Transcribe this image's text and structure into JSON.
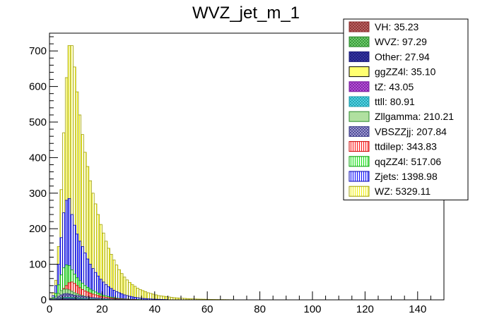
{
  "chart_data": {
    "type": "bar",
    "title": "WVZ_jet_m_1",
    "xlabel": "",
    "ylabel": "",
    "xlim": [
      0,
      150
    ],
    "ylim": [
      0,
      750
    ],
    "bin_width": 1,
    "x_ticks": [
      0,
      20,
      40,
      60,
      80,
      100,
      120,
      140
    ],
    "y_ticks": [
      0,
      100,
      200,
      300,
      400,
      500,
      600,
      700
    ],
    "stacked": false,
    "legend_position": "top-right",
    "legend": [
      {
        "label": "VH: 35.23",
        "fill": "#c07070",
        "hatch": "cross",
        "edge": "#8a2a2a"
      },
      {
        "label": "WVZ: 97.29",
        "fill": "#7ddc7d",
        "hatch": "cross",
        "edge": "#2e8b2e"
      },
      {
        "label": "Other: 27.94",
        "fill": "#3a3aa8",
        "hatch": "cross",
        "edge": "#1a1a7a"
      },
      {
        "label": "ggZZ4l: 35.10",
        "fill": "#ffff70",
        "hatch": "none",
        "edge": "#000000"
      },
      {
        "label": "tZ: 43.05",
        "fill": "#c060e0",
        "hatch": "cross",
        "edge": "#7a1aa0"
      },
      {
        "label": "ttll: 80.91",
        "fill": "#60e0f0",
        "hatch": "cross",
        "edge": "#1a9aaa"
      },
      {
        "label": "Zllgamma: 210.21",
        "fill": "#b0e0a0",
        "hatch": "none",
        "edge": "#2e8b2e"
      },
      {
        "label": "VBSZZjj: 207.84",
        "fill": "#b8b0e0",
        "hatch": "cross",
        "edge": "#3a3a8a"
      },
      {
        "label": "ttdilep: 343.83",
        "fill": "#ff2020",
        "hatch": "vertical",
        "edge": "#cc0000"
      },
      {
        "label": "qqZZ4l: 517.06",
        "fill": "#20e020",
        "hatch": "vertical",
        "edge": "#00a000"
      },
      {
        "label": "Zjets: 1398.98",
        "fill": "#1a1aff",
        "hatch": "vertical",
        "edge": "#0000b0"
      },
      {
        "label": "WZ: 5329.11",
        "fill": "#f0f020",
        "hatch": "vertical",
        "edge": "#a0a000"
      }
    ],
    "series": [
      {
        "name": "WZ: 5329.11",
        "x_start": 0,
        "values": [
          5,
          20,
          55,
          150,
          310,
          470,
          625,
          715,
          715,
          655,
          585,
          520,
          465,
          415,
          375,
          335,
          300,
          270,
          240,
          212,
          188,
          165,
          145,
          128,
          112,
          98,
          85,
          74,
          64,
          56,
          49,
          43,
          38,
          33,
          29,
          26,
          23,
          20,
          18,
          16,
          14,
          12,
          11,
          10,
          9,
          8,
          7,
          6,
          5.5,
          5,
          4.5,
          4,
          3.5,
          3,
          2.8,
          2.5,
          2.2,
          2,
          1.8,
          1.6,
          1.4,
          1.2,
          1.1,
          1,
          0.9,
          0.8,
          0.7,
          0.6,
          0.5,
          0.5
        ]
      },
      {
        "name": "Zjets: 1398.98",
        "x_start": 0,
        "values": [
          3,
          12,
          40,
          100,
          175,
          245,
          280,
          285,
          240,
          210,
          185,
          165,
          150,
          132,
          115,
          100,
          88,
          77,
          67,
          58,
          50,
          43,
          37,
          32,
          27,
          23,
          20,
          17,
          14,
          12,
          10,
          8.5,
          7,
          6,
          5,
          4,
          3.5,
          3,
          2.5,
          2,
          1.8,
          1.5,
          1.2,
          1,
          0.8
        ]
      },
      {
        "name": "qqZZ4l: 517.06",
        "x_start": 0,
        "values": [
          1,
          6,
          18,
          42,
          70,
          90,
          98,
          96,
          84,
          72,
          62,
          54,
          47,
          40,
          35,
          30,
          26,
          22,
          19,
          16,
          13,
          11,
          9,
          7.5,
          6,
          5,
          4,
          3.3,
          2.7,
          2.2,
          1.8,
          1.5,
          1.2,
          1,
          0.8
        ]
      },
      {
        "name": "ttdilep: 343.83",
        "x_start": 0,
        "values": [
          0.5,
          2,
          6,
          14,
          24,
          32,
          40,
          48,
          50,
          46,
          40,
          34,
          29,
          25,
          22,
          19,
          16,
          14,
          12,
          10,
          8.5,
          7,
          6,
          5,
          4,
          3.3,
          2.7,
          2.2,
          1.8,
          1.5,
          1.2,
          1,
          0.8
        ]
      },
      {
        "name": "Zllgamma: 210.21",
        "x_start": 0,
        "values": [
          1,
          4,
          10,
          18,
          26,
          30,
          30,
          28,
          24,
          20,
          17,
          14,
          12,
          10,
          8.5,
          7,
          6,
          5,
          4,
          3.3,
          2.7,
          2.2,
          1.8,
          1.4,
          1.1,
          0.9,
          0.7
        ]
      },
      {
        "name": "VBSZZjj: 207.84",
        "x_start": 0,
        "values": [
          0.5,
          2,
          5,
          10,
          14,
          17,
          18,
          17,
          15,
          13,
          12,
          11,
          10,
          9,
          8,
          7,
          6.4,
          5.8,
          5.2,
          4.6,
          4,
          3.5,
          3,
          2.6,
          2.2,
          1.9,
          1.6,
          1.3,
          1.1,
          0.9,
          0.7,
          0.6
        ]
      },
      {
        "name": "WVZ: 97.29",
        "x_start": 0,
        "values": [
          0.2,
          0.8,
          2,
          4,
          5.5,
          6.5,
          7,
          7,
          6.5,
          6,
          5.5,
          5,
          4.5,
          4,
          3.5,
          3,
          2.6,
          2.2,
          1.9,
          1.6,
          1.3,
          1.1,
          0.9,
          0.7,
          0.6
        ]
      },
      {
        "name": "ttll: 80.91",
        "x_start": 0,
        "values": [
          0.2,
          0.6,
          1.5,
          3,
          4.5,
          5.5,
          6,
          6,
          5.5,
          5,
          4.5,
          4,
          3.5,
          3,
          2.6,
          2.2,
          1.9,
          1.6,
          1.3,
          1.1,
          0.9,
          0.7,
          0.6
        ]
      },
      {
        "name": "tZ: 43.05",
        "x_start": 0,
        "values": [
          0.1,
          0.4,
          1,
          2,
          2.8,
          3.2,
          3.4,
          3.2,
          3,
          2.7,
          2.4,
          2.1,
          1.8,
          1.5,
          1.3,
          1.1,
          0.9,
          0.7,
          0.6,
          0.5
        ]
      },
      {
        "name": "ggZZ4l: 35.10",
        "x_start": 0,
        "values": [
          0.1,
          0.3,
          0.8,
          1.6,
          2.3,
          2.8,
          3,
          2.9,
          2.6,
          2.3,
          2,
          1.7,
          1.4,
          1.2,
          1,
          0.8,
          0.7,
          0.6,
          0.5
        ]
      },
      {
        "name": "VH: 35.23",
        "x_start": 0,
        "values": [
          0.1,
          0.4,
          1,
          2,
          2.8,
          3.1,
          3.2,
          3,
          2.7,
          2.3,
          2,
          1.7,
          1.4,
          1.2,
          1,
          0.8,
          0.7,
          0.6,
          0.5
        ]
      },
      {
        "name": "Other: 27.94",
        "x_start": 0,
        "values": [
          0.1,
          0.3,
          0.8,
          1.5,
          2.1,
          2.4,
          2.5,
          2.4,
          2.2,
          1.9,
          1.6,
          1.4,
          1.2,
          1,
          0.8,
          0.7,
          0.6,
          0.5
        ]
      }
    ]
  }
}
